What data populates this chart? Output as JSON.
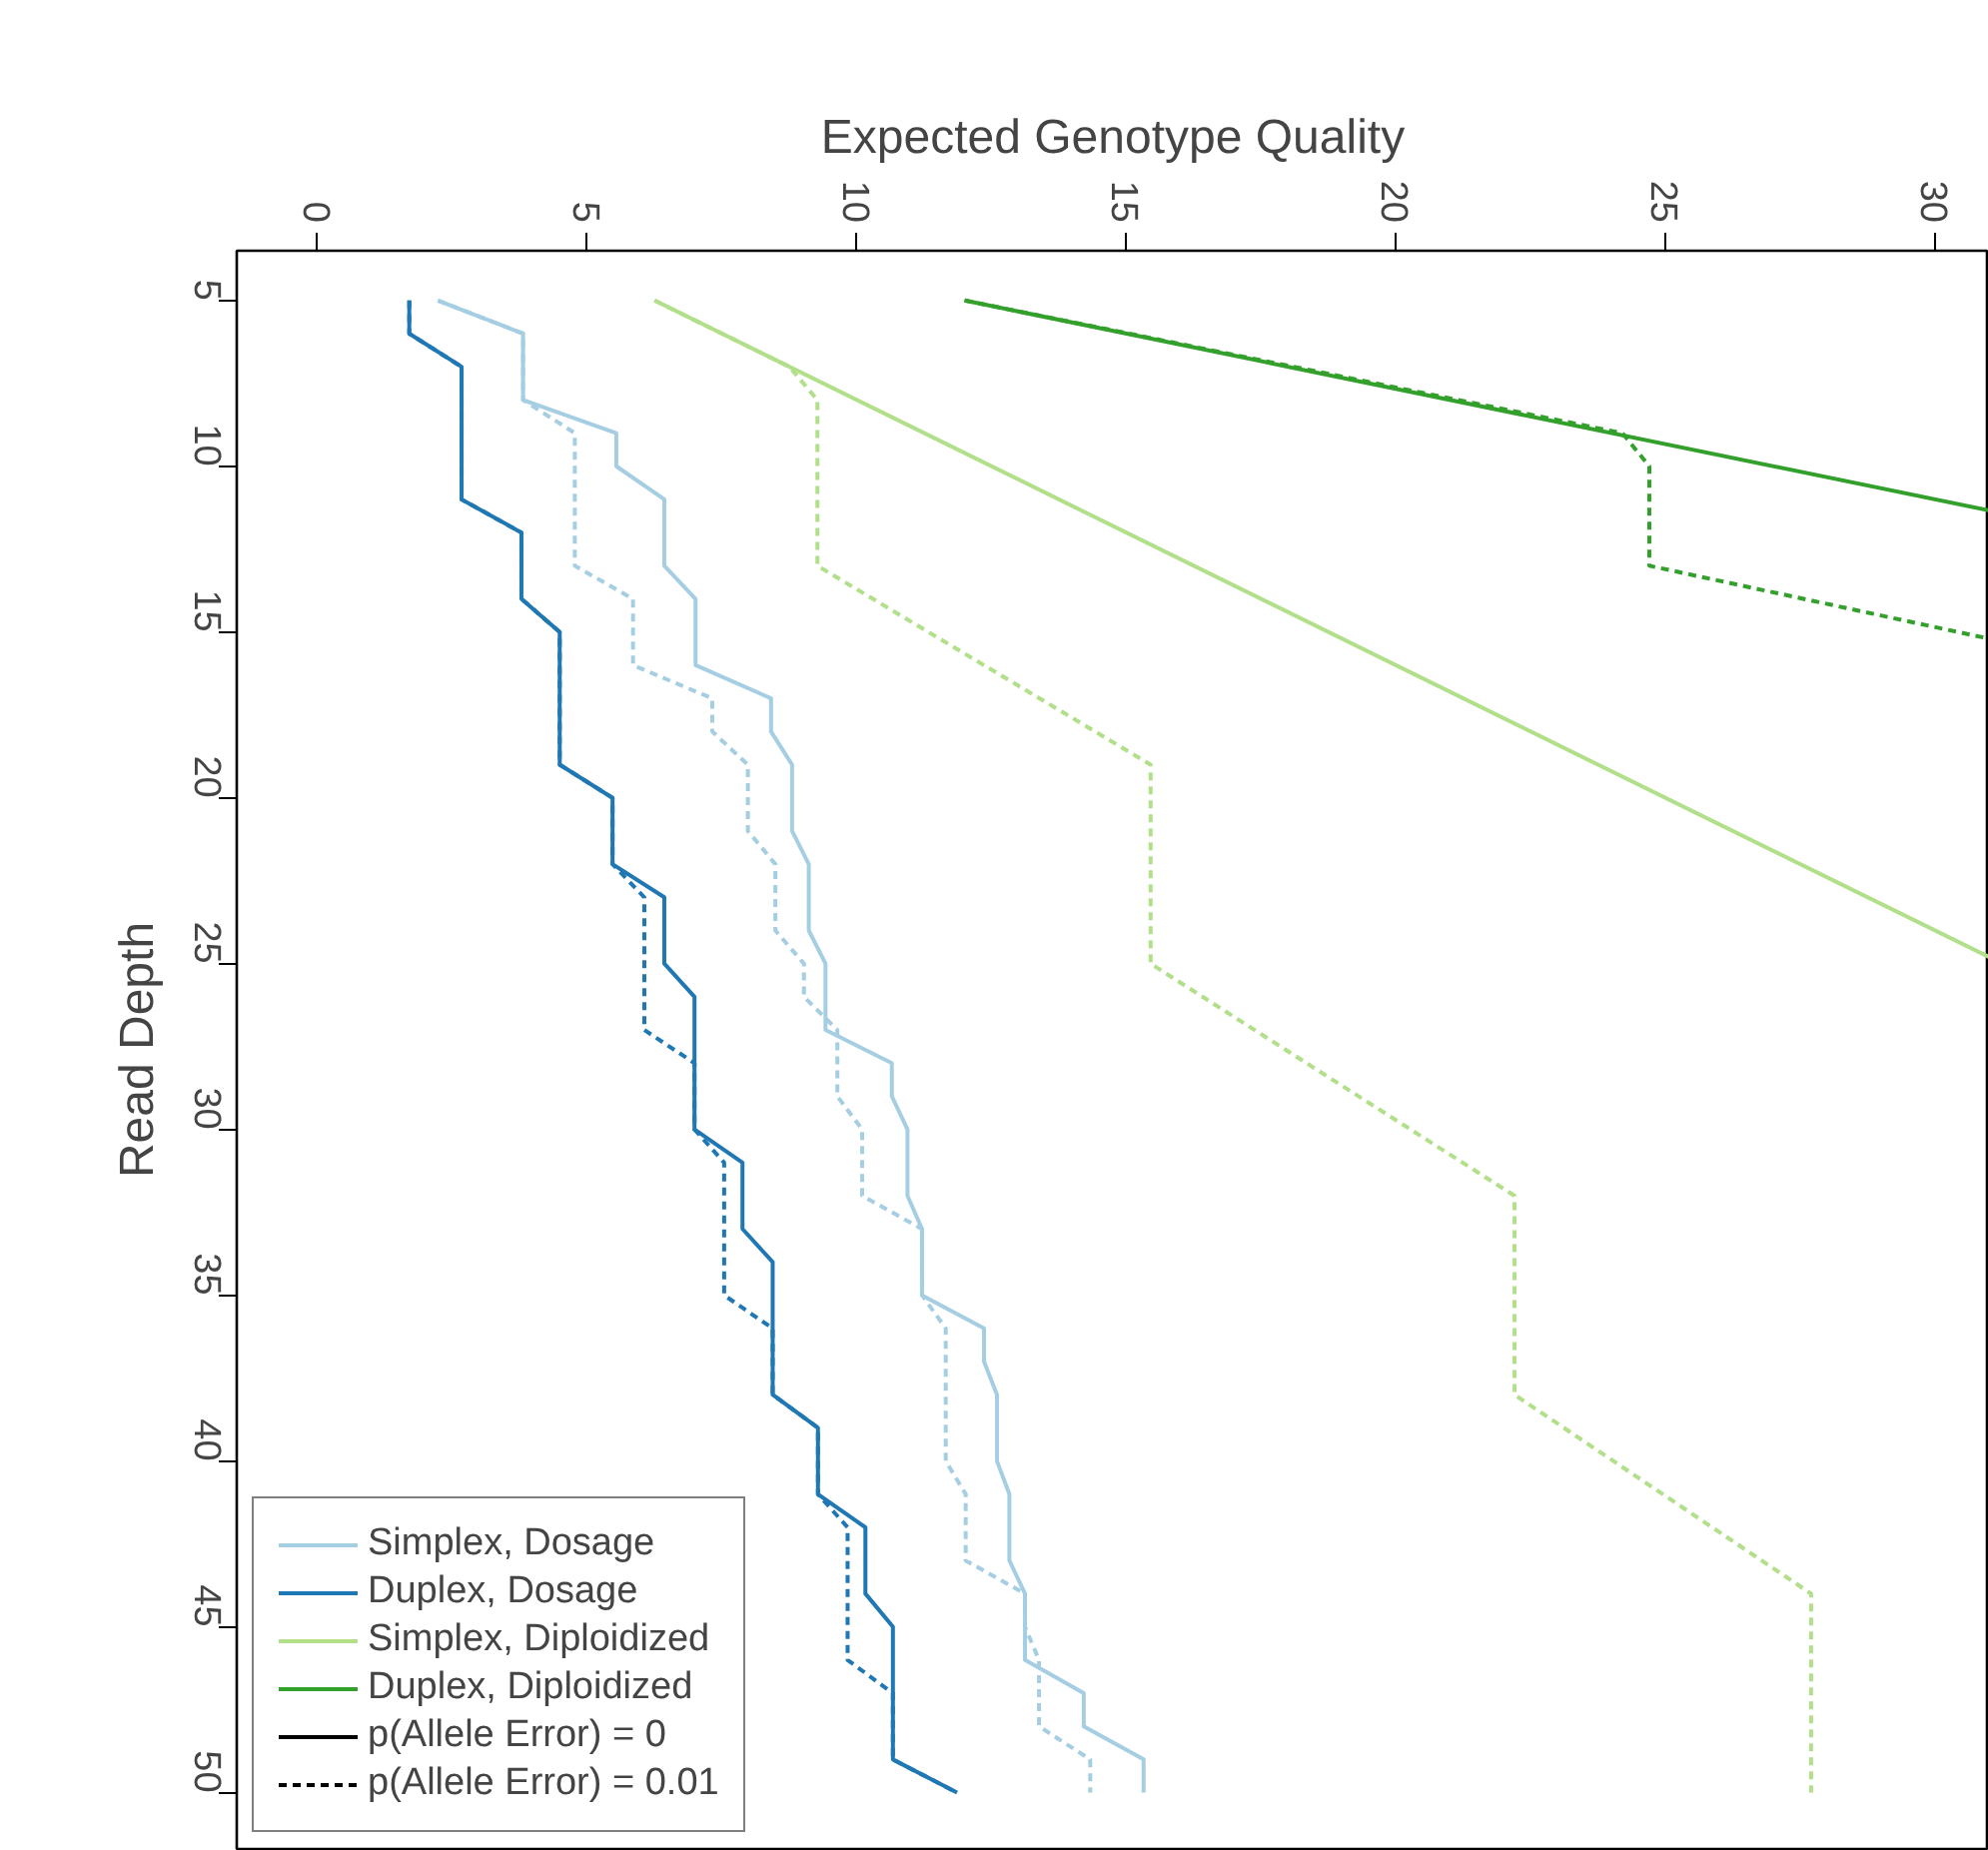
{
  "chart_data": {
    "type": "line",
    "xlabel": "Expected Genotype Quality",
    "ylabel": "Read Depth",
    "xlim": [
      -1.5,
      31
    ],
    "xticks": [
      0,
      5,
      10,
      15,
      20,
      25,
      30
    ],
    "ylim": [
      51.7,
      3.5
    ],
    "yticks": [
      5,
      10,
      15,
      20,
      25,
      30,
      35,
      40,
      45,
      50
    ],
    "grid": false,
    "legend": "bottom left",
    "marker": "none",
    "annotations": [
      "p(Allele Error) = 0",
      "p(Allele Error) = 0.01"
    ],
    "series": [
      {
        "name": "Simplex, Dosage",
        "color": "#a6cee3",
        "line_style": "solid",
        "x": [
          2.23,
          3.81,
          3.81,
          5.54,
          5.54,
          6.43,
          6.43,
          7.01,
          7.01,
          8.41,
          8.41,
          8.8,
          8.8,
          9.11,
          9.11,
          9.42,
          9.42,
          10.65,
          10.65,
          10.94,
          10.94,
          11.21,
          11.21,
          12.36,
          12.36,
          12.6,
          12.6,
          12.83,
          12.83,
          13.12,
          13.12,
          14.21,
          14.21,
          15.32,
          15.32
        ],
        "values": [
          5,
          6,
          8,
          9,
          10,
          11,
          13,
          14,
          16,
          17,
          18,
          19,
          21,
          22,
          24,
          25,
          27,
          28,
          29,
          30,
          32,
          33,
          35,
          36,
          37,
          38,
          40,
          41,
          43,
          44,
          46,
          47,
          48,
          49,
          50
        ]
      },
      {
        "name": "Duplex, Dosage",
        "color": "#1f78b4",
        "line_style": "solid",
        "x": [
          1.7,
          1.7,
          2.67,
          2.67,
          3.78,
          3.78,
          4.49,
          4.49,
          5.47,
          5.47,
          6.43,
          6.43,
          6.99,
          6.99,
          7.88,
          7.88,
          8.44,
          8.44,
          9.28,
          9.28,
          10.16,
          10.16,
          10.67,
          10.67,
          11.86
        ],
        "values": [
          5,
          6,
          7,
          11,
          12,
          14,
          15,
          19,
          20,
          22,
          23,
          25,
          26,
          30,
          31,
          33,
          34,
          38,
          39,
          41,
          42,
          44,
          45,
          49,
          50
        ]
      },
      {
        "name": "Simplex, Diploidized",
        "color": "#b2df8a",
        "line_style": "solid",
        "x": [
          6.25,
          31
        ],
        "values": [
          5,
          24.8
        ]
      },
      {
        "name": "Duplex, Diploidized",
        "color": "#33a02c",
        "line_style": "solid",
        "x": [
          12,
          31
        ],
        "values": [
          5,
          11.33
        ]
      },
      {
        "color": "#a6cee3",
        "line_style": "dashed",
        "x": [
          2.23,
          3.81,
          3.81,
          4.77,
          4.77,
          5.85,
          5.85,
          7.32,
          7.32,
          7.98,
          7.98,
          8.49,
          8.49,
          9.02,
          9.02,
          9.64,
          9.64,
          10.1,
          10.1,
          11.21,
          11.21,
          11.65,
          11.65,
          12.02,
          12.02,
          13.12,
          13.12,
          13.38,
          13.38,
          14.33,
          14.33
        ],
        "values": [
          5,
          6,
          8,
          9,
          13,
          14,
          16,
          17,
          18,
          19,
          21,
          22,
          24,
          25,
          26,
          27,
          29,
          30,
          32,
          33,
          35,
          36,
          40,
          41,
          43,
          44,
          45,
          46,
          48,
          49,
          50
        ]
      },
      {
        "color": "#1f78b4",
        "line_style": "dashed",
        "x": [
          1.7,
          1.7,
          2.67,
          2.67,
          3.78,
          3.78,
          4.49,
          4.49,
          5.47,
          5.47,
          6.06,
          6.06,
          6.99,
          6.99,
          7.54,
          7.54,
          8.44,
          8.44,
          9.28,
          9.28,
          9.83,
          9.83,
          10.67,
          10.67,
          11.86
        ],
        "values": [
          5,
          6,
          7,
          11,
          12,
          14,
          15,
          19,
          20,
          22,
          23,
          27,
          28,
          30,
          31,
          35,
          36,
          38,
          39,
          41,
          42,
          46,
          47,
          49,
          50
        ]
      },
      {
        "color": "#b2df8a",
        "line_style": "dashed",
        "x": [
          6.25,
          8.75,
          9.27,
          9.27,
          15.45,
          15.45,
          22.2,
          22.2,
          27.7,
          27.7
        ],
        "values": [
          5,
          7,
          8,
          13,
          19,
          25,
          32,
          38,
          44,
          50
        ]
      },
      {
        "color": "#33a02c",
        "line_style": "dashed",
        "x": [
          12,
          24.2,
          24.7,
          24.7,
          31
        ],
        "values": [
          5,
          9,
          10,
          13,
          15.2
        ]
      }
    ]
  }
}
